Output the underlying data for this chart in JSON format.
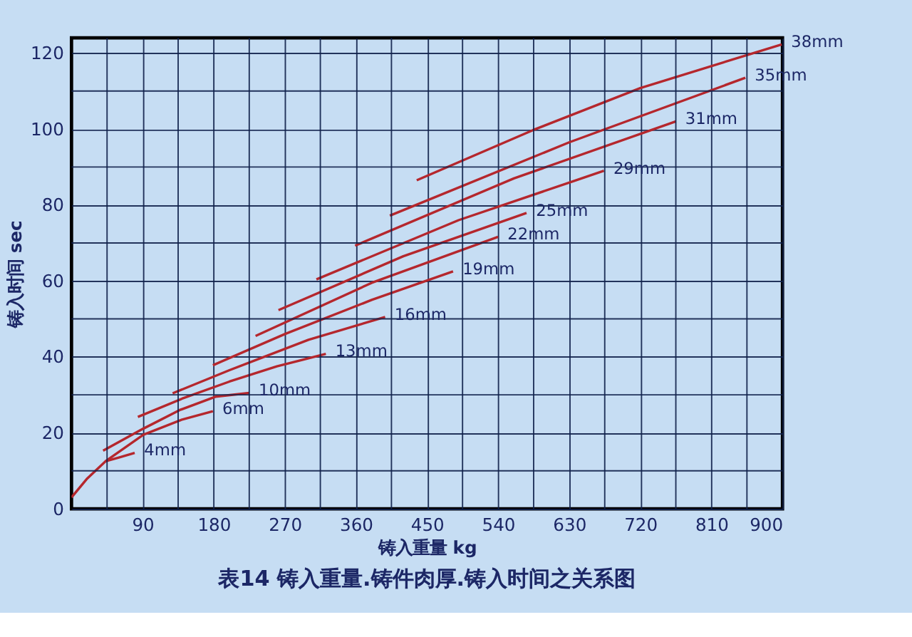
{
  "chart_data": {
    "type": "line",
    "title": "表14 铸入重量.铸件肉厚.铸入时间之关系图",
    "xlabel": "铸入重量    kg",
    "ylabel": "铸入时间    sec",
    "xlim": [
      0,
      900
    ],
    "ylim": [
      0,
      124
    ],
    "xticks": [
      {
        "value": 45,
        "label": null
      },
      90,
      {
        "value": 135,
        "label": null
      },
      180,
      {
        "value": 225,
        "label": null
      },
      270,
      {
        "value": 315,
        "label": null
      },
      360,
      {
        "value": 405,
        "label": null
      },
      450,
      {
        "value": 495,
        "label": null
      },
      540,
      {
        "value": 585,
        "label": null
      },
      630,
      {
        "value": 675,
        "label": null
      },
      720,
      {
        "value": 765,
        "label": null
      },
      810,
      {
        "value": 855,
        "label": null
      },
      900
    ],
    "yticks": [
      0,
      {
        "value": 10,
        "label": null
      },
      20,
      {
        "value": 30,
        "label": null
      },
      40,
      {
        "value": 50,
        "label": null
      },
      60,
      {
        "value": 70,
        "label": null
      },
      80,
      {
        "value": 90,
        "label": null
      },
      100,
      {
        "value": 110,
        "label": null
      },
      120
    ],
    "grid": true,
    "legend": false,
    "marker": "none",
    "line_style": "solid",
    "series": [
      {
        "name": "4mm",
        "color": "#b5272d",
        "x": [
          0,
          20,
          43,
          60,
          80
        ],
        "values": [
          3,
          8,
          12.5,
          13.5,
          14.7
        ]
      },
      {
        "name": "6mm",
        "color": "#b5272d",
        "x": [
          43,
          91,
          140,
          179
        ],
        "values": [
          12.5,
          19.5,
          23.5,
          25.7
        ]
      },
      {
        "name": "10mm",
        "color": "#b5272d",
        "x": [
          40,
          90,
          137,
          182,
          225
        ],
        "values": [
          15.3,
          21,
          26,
          29.5,
          30.5
        ]
      },
      {
        "name": "13mm",
        "color": "#b5272d",
        "x": [
          84,
          140,
          200,
          260,
          322
        ],
        "values": [
          24.2,
          29,
          33.5,
          37.5,
          40.8
        ]
      },
      {
        "name": "16mm",
        "color": "#b5272d",
        "x": [
          128,
          200,
          300,
          397
        ],
        "values": [
          30.4,
          36.5,
          44.5,
          50.5
        ]
      },
      {
        "name": "19mm",
        "color": "#b5272d",
        "x": [
          179,
          270,
          380,
          483
        ],
        "values": [
          37.8,
          46,
          55,
          62.5
        ]
      },
      {
        "name": "22mm",
        "color": "#b5272d",
        "x": [
          233,
          380,
          540
        ],
        "values": [
          45.5,
          59.5,
          71.6
        ]
      },
      {
        "name": "25mm",
        "color": "#b5272d",
        "x": [
          262,
          420,
          576
        ],
        "values": [
          52.3,
          66.5,
          77.9
        ]
      },
      {
        "name": "29mm",
        "color": "#b5272d",
        "x": [
          310,
          490,
          674
        ],
        "values": [
          60.4,
          76,
          89
        ]
      },
      {
        "name": "31mm",
        "color": "#b5272d",
        "x": [
          359,
          560,
          765
        ],
        "values": [
          69.3,
          87,
          102
        ]
      },
      {
        "name": "35mm",
        "color": "#b5272d",
        "x": [
          403,
          630,
          853
        ],
        "values": [
          77.2,
          96.5,
          113.5
        ]
      },
      {
        "name": "38mm",
        "color": "#b5272d",
        "x": [
          437,
          584,
          720,
          899
        ],
        "values": [
          86.5,
          99.7,
          110.8,
          122.3
        ]
      }
    ]
  }
}
